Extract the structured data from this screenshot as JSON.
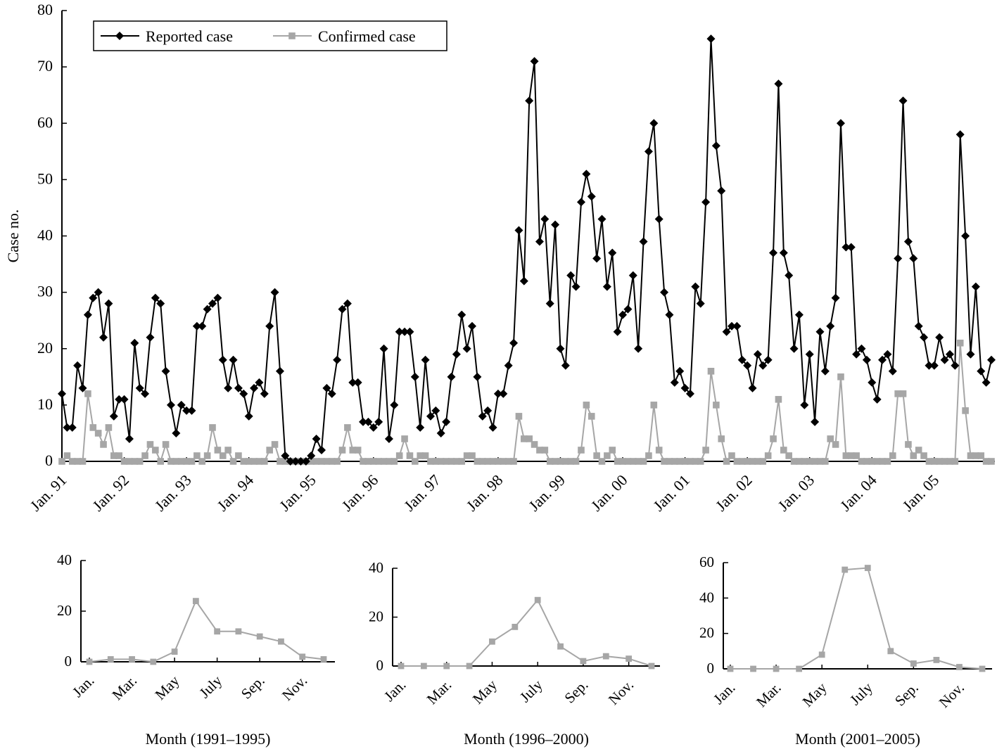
{
  "colors": {
    "reported": "#000000",
    "confirmed": "#a6a6a6"
  },
  "chart_data": [
    {
      "type": "line",
      "ylabel": "Case no.",
      "ylim": [
        0,
        80
      ],
      "yticks": [
        0,
        10,
        20,
        30,
        40,
        50,
        60,
        70,
        80
      ],
      "xtick_labels": [
        "Jan. 91",
        "Jan. 92",
        "Jan. 93",
        "Jan. 94",
        "Jan. 95",
        "Jan. 96",
        "Jan. 97",
        "Jan. 98",
        "Jan. 99",
        "Jan. 00",
        "Jan. 01",
        "Jan. 02",
        "Jan. 03",
        "Jan. 04",
        "Jan. 05"
      ],
      "x_range": [
        "Jan. 1991",
        "Dec. 2005"
      ],
      "legend_position": "top-left",
      "series": [
        {
          "name": "Reported case",
          "marker": "diamond",
          "values": [
            12,
            6,
            6,
            17,
            13,
            26,
            29,
            30,
            22,
            28,
            8,
            11,
            11,
            4,
            21,
            13,
            12,
            22,
            29,
            28,
            16,
            10,
            5,
            10,
            9,
            9,
            24,
            24,
            27,
            28,
            29,
            18,
            13,
            18,
            13,
            12,
            8,
            13,
            14,
            12,
            24,
            30,
            16,
            1,
            0,
            0,
            0,
            0,
            1,
            4,
            2,
            13,
            12,
            18,
            27,
            28,
            14,
            14,
            7,
            7,
            6,
            7,
            20,
            4,
            10,
            23,
            23,
            23,
            15,
            6,
            18,
            8,
            9,
            5,
            7,
            15,
            19,
            26,
            20,
            24,
            15,
            8,
            9,
            6,
            12,
            12,
            17,
            21,
            41,
            32,
            64,
            71,
            39,
            43,
            28,
            42,
            20,
            17,
            33,
            31,
            46,
            51,
            47,
            36,
            43,
            31,
            37,
            23,
            26,
            27,
            33,
            20,
            39,
            55,
            60,
            43,
            30,
            26,
            14,
            16,
            13,
            12,
            31,
            28,
            46,
            75,
            56,
            48,
            23,
            24,
            24,
            18,
            17,
            13,
            19,
            17,
            18,
            37,
            67,
            37,
            33,
            20,
            26,
            10,
            19,
            7,
            23,
            16,
            24,
            29,
            60,
            38,
            38,
            19,
            20,
            18,
            14,
            11,
            18,
            19,
            16,
            36,
            64,
            39,
            36,
            24,
            22,
            17,
            17,
            22,
            18,
            19,
            17,
            58,
            40,
            19,
            31,
            16,
            14,
            18
          ]
        },
        {
          "name": "Confirmed case",
          "marker": "square",
          "values": [
            0,
            1,
            0,
            0,
            0,
            12,
            6,
            5,
            3,
            6,
            1,
            1,
            0,
            0,
            0,
            0,
            1,
            3,
            2,
            0,
            3,
            0,
            0,
            0,
            0,
            0,
            1,
            0,
            1,
            6,
            2,
            1,
            2,
            0,
            1,
            0,
            0,
            0,
            0,
            0,
            2,
            3,
            0,
            0,
            0,
            0,
            0,
            0,
            0,
            0,
            0,
            0,
            0,
            0,
            2,
            6,
            2,
            2,
            0,
            0,
            0,
            0,
            0,
            0,
            0,
            1,
            4,
            1,
            0,
            1,
            1,
            0,
            0,
            0,
            0,
            0,
            0,
            0,
            1,
            1,
            0,
            0,
            0,
            0,
            0,
            0,
            0,
            0,
            8,
            4,
            4,
            3,
            2,
            2,
            0,
            0,
            0,
            0,
            0,
            0,
            2,
            10,
            8,
            1,
            0,
            1,
            2,
            0,
            0,
            0,
            0,
            0,
            0,
            1,
            10,
            2,
            0,
            0,
            0,
            0,
            0,
            0,
            0,
            0,
            2,
            16,
            10,
            4,
            0,
            1,
            0,
            0,
            0,
            0,
            0,
            0,
            1,
            4,
            11,
            2,
            1,
            0,
            0,
            0,
            0,
            0,
            0,
            0,
            4,
            3,
            15,
            1,
            1,
            1,
            0,
            0,
            0,
            0,
            0,
            0,
            1,
            12,
            12,
            3,
            1,
            2,
            1,
            0,
            0,
            0,
            0,
            0,
            0,
            21,
            9,
            1,
            1,
            1,
            0,
            0
          ]
        }
      ]
    },
    {
      "type": "line",
      "xlabel": "Month (1991–1995)",
      "ylim": [
        0,
        40
      ],
      "yticks": [
        0,
        20,
        40
      ],
      "xtick_labels": [
        "Jan.",
        "Mar.",
        "May",
        "July",
        "Sep.",
        "Nov."
      ],
      "series": [
        {
          "marker": "square",
          "values": [
            0,
            1,
            1,
            0,
            4,
            24,
            12,
            12,
            10,
            8,
            2,
            1
          ]
        }
      ]
    },
    {
      "type": "line",
      "xlabel": "Month (1996–2000)",
      "ylim": [
        0,
        40
      ],
      "yticks": [
        0,
        20,
        40
      ],
      "xtick_labels": [
        "Jan.",
        "Mar.",
        "May",
        "July",
        "Sep.",
        "Nov."
      ],
      "series": [
        {
          "marker": "square",
          "values": [
            0,
            0,
            0,
            0,
            10,
            16,
            27,
            8,
            2,
            4,
            3,
            0
          ]
        }
      ]
    },
    {
      "type": "line",
      "xlabel": "Month (2001–2005)",
      "ylim": [
        0,
        60
      ],
      "yticks": [
        0,
        20,
        40,
        60
      ],
      "xtick_labels": [
        "Jan.",
        "Mar.",
        "May",
        "July",
        "Sep.",
        "Nov."
      ],
      "series": [
        {
          "marker": "square",
          "values": [
            0,
            0,
            0,
            0,
            8,
            56,
            57,
            10,
            3,
            5,
            1,
            0
          ]
        }
      ]
    }
  ]
}
